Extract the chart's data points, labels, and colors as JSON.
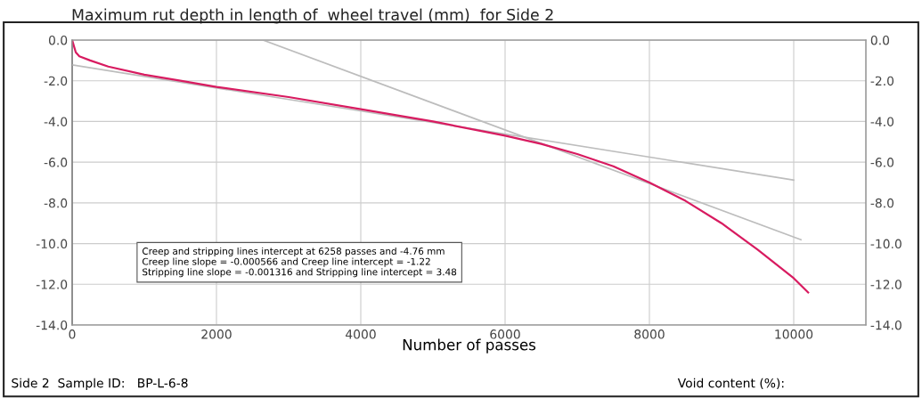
{
  "chart_data": {
    "type": "line",
    "title": "Maximum rut depth in length of  wheel travel (mm)  for Side 2",
    "xlabel": "Number of passes",
    "x": [
      0,
      50,
      100,
      250,
      500,
      1000,
      1500,
      2000,
      3000,
      4000,
      5000,
      6000,
      6500,
      7000,
      7500,
      8000,
      8500,
      9000,
      9500,
      10000,
      10200
    ],
    "series": [
      {
        "color": "#d81b60",
        "values": [
          0.0,
          -0.6,
          -0.8,
          -1.0,
          -1.3,
          -1.7,
          -2.0,
          -2.3,
          -2.8,
          -3.4,
          -4.0,
          -4.7,
          -5.1,
          -5.6,
          -6.2,
          -7.0,
          -7.9,
          -9.0,
          -10.3,
          -11.7,
          -12.4
        ]
      },
      {
        "color": "#bdbdbd",
        "x": [
          0,
          10000
        ],
        "values": [
          -1.22,
          -6.88
        ]
      },
      {
        "color": "#bdbdbd",
        "x": [
          2645,
          10100
        ],
        "values": [
          0.0,
          -9.81
        ]
      }
    ],
    "xlim": [
      0,
      11000
    ],
    "xticks": [
      0,
      2000,
      4000,
      6000,
      8000,
      10000
    ],
    "ylim": [
      -14,
      0
    ],
    "yticks": [
      {
        "value": 0,
        "label": "0.0"
      },
      {
        "value": -2,
        "label": "-2.0"
      },
      {
        "value": -4,
        "label": "-4.0"
      },
      {
        "value": -6,
        "label": "-6.0"
      },
      {
        "value": -8,
        "label": "-8.0"
      },
      {
        "value": -10,
        "label": "-10.0"
      },
      {
        "value": -12,
        "label": "-12.0"
      },
      {
        "value": -14,
        "label": "-14.0"
      }
    ],
    "y2lim": [
      -14,
      0
    ],
    "y2ticks": [
      {
        "value": 0,
        "label": "0.0"
      },
      {
        "value": -2,
        "label": "-2.0"
      },
      {
        "value": -4,
        "label": "-4.0"
      },
      {
        "value": -6,
        "label": "-6.0"
      },
      {
        "value": -8,
        "label": "-8.0"
      },
      {
        "value": -10,
        "label": "-10.0"
      },
      {
        "value": -12,
        "label": "-12.0"
      },
      {
        "value": -14,
        "label": "-14.0"
      }
    ],
    "grid": true,
    "legend": false,
    "marker": "none",
    "line_style": "solid",
    "annotations": [
      "Creep and stripping lines intercept at 6258 passes and -4.76 mm\nCreep line slope = -0.000566 and Creep line intercept = -1.22\nStripping line slope = -0.001316 and Stripping line intercept = 3.48",
      "Side 2  Sample ID:   BP-L-6-8",
      "Void content (%):"
    ]
  }
}
